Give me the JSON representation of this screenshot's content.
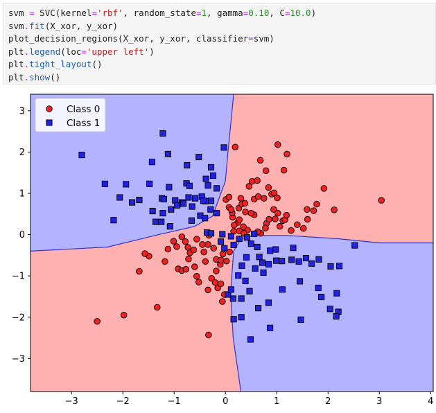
{
  "code": {
    "lines": [
      [
        {
          "t": "svm "
        },
        {
          "t": "=",
          "c": "tk-op"
        },
        {
          "t": " SVC(kernel"
        },
        {
          "t": "=",
          "c": "tk-op"
        },
        {
          "t": "'rbf'",
          "c": "tk-str"
        },
        {
          "t": ", random_state"
        },
        {
          "t": "=",
          "c": "tk-op"
        },
        {
          "t": "1",
          "c": "tk-num"
        },
        {
          "t": ", gamma"
        },
        {
          "t": "=",
          "c": "tk-op"
        },
        {
          "t": "0.10",
          "c": "tk-num"
        },
        {
          "t": ", C"
        },
        {
          "t": "=",
          "c": "tk-op"
        },
        {
          "t": "10.0",
          "c": "tk-num"
        },
        {
          "t": ")"
        }
      ],
      [
        {
          "t": "svm"
        },
        {
          "t": ".",
          "c": "tk-op"
        },
        {
          "t": "fit",
          "c": "tk-fn"
        },
        {
          "t": "(X_xor, y_xor)"
        }
      ],
      [
        {
          "t": "plot_decision_regions(X_xor, y_xor, classifier"
        },
        {
          "t": "=",
          "c": "tk-op"
        },
        {
          "t": "svm)"
        }
      ],
      [
        {
          "t": "plt"
        },
        {
          "t": ".",
          "c": "tk-op"
        },
        {
          "t": "legend",
          "c": "tk-fn"
        },
        {
          "t": "(loc"
        },
        {
          "t": "=",
          "c": "tk-op"
        },
        {
          "t": "'upper left'",
          "c": "tk-str"
        },
        {
          "t": ")"
        }
      ],
      [
        {
          "t": "plt"
        },
        {
          "t": ".",
          "c": "tk-op"
        },
        {
          "t": "tight_layout",
          "c": "tk-fn"
        },
        {
          "t": "()"
        }
      ],
      [
        {
          "t": "plt"
        },
        {
          "t": ".",
          "c": "tk-op"
        },
        {
          "t": "show",
          "c": "tk-fn"
        },
        {
          "t": "()"
        }
      ]
    ]
  },
  "colors": {
    "class0_region": "#ffb0b0",
    "class1_region": "#b3b3ff",
    "boundary": "#3333cc",
    "class0_marker": "#ee2222",
    "class1_marker": "#2222dd",
    "marker_edge": "#000000"
  },
  "chart_data": {
    "type": "scatter",
    "xlim": [
      -3.8,
      4.05
    ],
    "ylim": [
      -3.8,
      3.4
    ],
    "xticks": [
      -3,
      -2,
      -1,
      0,
      1,
      2,
      3,
      4
    ],
    "yticks": [
      -3,
      -2,
      -1,
      0,
      1,
      2,
      3
    ],
    "xtick_labels": [
      "−3",
      "−2",
      "−1",
      "0",
      "1",
      "2",
      "3",
      "4"
    ],
    "ytick_labels": [
      "−3",
      "−2",
      "−1",
      "0",
      "1",
      "2",
      "3"
    ],
    "legend_placement": "upper left",
    "legend": [
      {
        "label": "Class 0",
        "marker": "circle"
      },
      {
        "label": "Class 1",
        "marker": "square"
      }
    ],
    "regions": [
      {
        "label": "Class 1",
        "points": [
          [
            -3.8,
            3.4
          ],
          [
            0.16,
            3.4
          ],
          [
            0.05,
            2.0
          ],
          [
            0.0,
            1.3
          ],
          [
            -0.25,
            0.45
          ],
          [
            -0.6,
            0.2
          ],
          [
            -1.3,
            0.0
          ],
          [
            -2.3,
            -0.3
          ],
          [
            -3.8,
            -0.4
          ]
        ]
      },
      {
        "label": "Class 1",
        "points": [
          [
            4.05,
            -0.2
          ],
          [
            3.0,
            -0.2
          ],
          [
            2.2,
            -0.1
          ],
          [
            1.2,
            -0.02
          ],
          [
            0.55,
            -0.02
          ],
          [
            0.3,
            -0.1
          ],
          [
            0.16,
            -0.4
          ],
          [
            0.1,
            -1.4
          ],
          [
            0.15,
            -2.5
          ],
          [
            0.3,
            -3.8
          ],
          [
            4.05,
            -3.8
          ]
        ]
      }
    ],
    "boundaries": [
      [
        [
          0.16,
          3.4
        ],
        [
          0.05,
          2.0
        ],
        [
          0.0,
          1.3
        ],
        [
          -0.25,
          0.45
        ],
        [
          -0.6,
          0.2
        ],
        [
          -1.3,
          0.0
        ],
        [
          -2.3,
          -0.3
        ],
        [
          -3.8,
          -0.4
        ]
      ],
      [
        [
          4.05,
          -0.2
        ],
        [
          3.0,
          -0.2
        ],
        [
          2.2,
          -0.1
        ],
        [
          1.2,
          -0.02
        ],
        [
          0.55,
          -0.02
        ],
        [
          0.3,
          -0.1
        ],
        [
          0.16,
          -0.4
        ],
        [
          0.1,
          -1.4
        ],
        [
          0.15,
          -2.5
        ],
        [
          0.3,
          -3.8
        ]
      ]
    ],
    "series": [
      {
        "name": "Class 0",
        "marker": "circle",
        "points": [
          [
            -2.5,
            -2.1
          ],
          [
            -1.98,
            -1.95
          ],
          [
            -1.33,
            -1.76
          ],
          [
            -0.33,
            -2.43
          ],
          [
            -1.68,
            -0.89
          ],
          [
            -1.49,
            -0.52
          ],
          [
            -1.57,
            -0.46
          ],
          [
            -1.18,
            -0.65
          ],
          [
            -1.12,
            -0.35
          ],
          [
            -0.92,
            -0.83
          ],
          [
            -0.85,
            -0.87
          ],
          [
            -0.77,
            -0.84
          ],
          [
            -0.72,
            -0.59
          ],
          [
            -0.6,
            -0.78
          ],
          [
            -0.56,
            -1.01
          ],
          [
            -0.52,
            -1.15
          ],
          [
            -0.56,
            -0.11
          ],
          [
            -0.42,
            -0.42
          ],
          [
            -0.39,
            -0.65
          ],
          [
            -0.34,
            -0.24
          ],
          [
            -0.32,
            -0.02
          ],
          [
            -0.23,
            -0.33
          ],
          [
            -0.18,
            -0.6
          ],
          [
            -0.1,
            -0.72
          ],
          [
            -0.18,
            -0.88
          ],
          [
            -0.09,
            -0.62
          ],
          [
            0.02,
            -0.64
          ],
          [
            -0.05,
            -0.47
          ],
          [
            0.08,
            -0.42
          ],
          [
            -0.85,
            -0.05
          ],
          [
            -0.78,
            -0.17
          ],
          [
            -0.73,
            -0.31
          ],
          [
            -0.69,
            -0.44
          ],
          [
            -0.62,
            -0.37
          ],
          [
            -0.45,
            -0.24
          ],
          [
            -1.01,
            -0.16
          ],
          [
            -0.95,
            -0.29
          ],
          [
            -0.34,
            -1.34
          ],
          [
            -0.27,
            -1.06
          ],
          [
            -0.15,
            -1.29
          ],
          [
            -0.06,
            -1.62
          ],
          [
            -0.02,
            -1.45
          ],
          [
            -0.2,
            -1.16
          ],
          [
            -0.09,
            -1.19
          ],
          [
            0.19,
            2.12
          ],
          [
            0.26,
            0.64
          ],
          [
            0.32,
            0.74
          ],
          [
            0.38,
            0.76
          ],
          [
            0.46,
            1.17
          ],
          [
            0.52,
            1.29
          ],
          [
            0.62,
            1.31
          ],
          [
            0.68,
            1.8
          ],
          [
            0.79,
            1.55
          ],
          [
            0.8,
            0.27
          ],
          [
            0.84,
            1.14
          ],
          [
            0.9,
            0.98
          ],
          [
            0.94,
            0.61
          ],
          [
            0.97,
            0.38
          ],
          [
            1.02,
            0.52
          ],
          [
            1.02,
            2.18
          ],
          [
            1.12,
            0.34
          ],
          [
            1.14,
            1.56
          ],
          [
            1.2,
            1.95
          ],
          [
            1.28,
            0.1
          ],
          [
            1.4,
            0.24
          ],
          [
            1.52,
            0.15
          ],
          [
            1.6,
            0.37
          ],
          [
            1.72,
            0.58
          ],
          [
            1.78,
            0.74
          ],
          [
            1.92,
            1.12
          ],
          [
            2.12,
            0.6
          ],
          [
            3.04,
            0.83
          ],
          [
            1.16,
            0.36
          ],
          [
            0.85,
            0.37
          ],
          [
            0.78,
            0.16
          ],
          [
            0.69,
            0.03
          ],
          [
            0.63,
            0.07
          ],
          [
            0.56,
            0.48
          ],
          [
            0.5,
            0.52
          ],
          [
            0.43,
            0.11
          ],
          [
            0.35,
            0.19
          ],
          [
            0.24,
            0.29
          ],
          [
            0.14,
            0.42
          ],
          [
            0.07,
            0.66
          ],
          [
            0.01,
            0.85
          ],
          [
            0.07,
            0.91
          ],
          [
            0.13,
            0.53
          ],
          [
            0.17,
            0.23
          ],
          [
            0.27,
            0.09
          ],
          [
            0.36,
            0.03
          ],
          [
            0.56,
            0.86
          ],
          [
            0.75,
            0.88
          ],
          [
            1.01,
            0.89
          ],
          [
            0.95,
            1.01
          ],
          [
            0.11,
            0.61
          ],
          [
            0.3,
            0.88
          ],
          [
            0.64,
            0.92
          ],
          [
            0.39,
            0.55
          ],
          [
            0.27,
            0.36
          ],
          [
            0.16,
            0.08
          ],
          [
            1.19,
            0.47
          ],
          [
            1.59,
            0.61
          ],
          [
            1.06,
            0.2
          ]
        ]
      },
      {
        "name": "Class 1",
        "marker": "square",
        "points": [
          [
            -2.8,
            1.93
          ],
          [
            -1.22,
            2.45
          ],
          [
            -1.12,
            1.95
          ],
          [
            -1.43,
            1.76
          ],
          [
            -0.75,
            1.68
          ],
          [
            -0.52,
            1.88
          ],
          [
            -0.28,
            1.63
          ],
          [
            -0.38,
            1.35
          ],
          [
            -0.24,
            1.43
          ],
          [
            -0.03,
            2.11
          ],
          [
            -2.35,
            1.23
          ],
          [
            -1.94,
            1.22
          ],
          [
            -1.48,
            1.23
          ],
          [
            -1.1,
            1.15
          ],
          [
            -0.76,
            1.24
          ],
          [
            -0.7,
            1.18
          ],
          [
            -0.34,
            1.19
          ],
          [
            -0.17,
            1.12
          ],
          [
            -2.06,
            0.9
          ],
          [
            -1.82,
            0.78
          ],
          [
            -1.68,
            0.84
          ],
          [
            -1.24,
            0.88
          ],
          [
            -1.2,
            0.86
          ],
          [
            -0.98,
            0.83
          ],
          [
            -0.85,
            0.78
          ],
          [
            -0.72,
            0.9
          ],
          [
            -0.59,
            0.88
          ],
          [
            -0.46,
            0.92
          ],
          [
            -0.39,
            0.81
          ],
          [
            -0.28,
            0.82
          ],
          [
            -1.42,
            0.57
          ],
          [
            -1.22,
            0.52
          ],
          [
            -1.06,
            0.61
          ],
          [
            -0.94,
            0.71
          ],
          [
            -0.82,
            0.75
          ],
          [
            -0.65,
            0.68
          ],
          [
            -0.43,
            0.82
          ],
          [
            -0.29,
            0.61
          ],
          [
            -0.49,
            0.46
          ],
          [
            -0.17,
            0.52
          ],
          [
            -2.18,
            0.35
          ],
          [
            -1.36,
            0.31
          ],
          [
            -1.25,
            0.31
          ],
          [
            -1.08,
            0.2
          ],
          [
            -0.66,
            0.34
          ],
          [
            -0.4,
            0.4
          ],
          [
            -0.36,
            0.05
          ],
          [
            -0.28,
            0.03
          ],
          [
            -0.06,
            0.01
          ],
          [
            -0.09,
            -0.17
          ],
          [
            -0.02,
            -0.33
          ],
          [
            0.11,
            -0.04
          ],
          [
            0.16,
            -0.25
          ],
          [
            0.27,
            -0.1
          ],
          [
            0.42,
            -0.07
          ],
          [
            0.5,
            -0.22
          ],
          [
            0.56,
            0.02
          ],
          [
            0.62,
            -0.3
          ],
          [
            0.66,
            -0.54
          ],
          [
            0.72,
            -0.68
          ],
          [
            0.87,
            -0.39
          ],
          [
            0.99,
            -0.63
          ],
          [
            1.1,
            -0.64
          ],
          [
            1.29,
            -0.61
          ],
          [
            1.43,
            -0.65
          ],
          [
            1.57,
            -0.57
          ],
          [
            1.68,
            -0.7
          ],
          [
            1.82,
            -0.6
          ],
          [
            2.05,
            -0.77
          ],
          [
            2.17,
            -1.42
          ],
          [
            2.22,
            -0.76
          ],
          [
            2.2,
            -1.87
          ],
          [
            2.16,
            -1.98
          ],
          [
            2.52,
            -0.26
          ],
          [
            1.32,
            -0.32
          ],
          [
            0.98,
            -0.36
          ],
          [
            0.84,
            -0.72
          ],
          [
            0.74,
            -0.92
          ],
          [
            0.58,
            -0.82
          ],
          [
            0.41,
            -0.55
          ],
          [
            0.32,
            -0.75
          ],
          [
            0.25,
            -0.99
          ],
          [
            0.39,
            -1.12
          ],
          [
            0.47,
            -1.37
          ],
          [
            0.31,
            -1.55
          ],
          [
            0.15,
            -1.55
          ],
          [
            0.05,
            -1.45
          ],
          [
            0.11,
            -1.33
          ],
          [
            0.64,
            -1.78
          ],
          [
            0.84,
            -1.65
          ],
          [
            1.11,
            -1.33
          ],
          [
            1.45,
            -1.13
          ],
          [
            1.81,
            -1.29
          ],
          [
            1.87,
            -1.51
          ],
          [
            2.04,
            -1.8
          ],
          [
            1.47,
            -2.06
          ],
          [
            0.87,
            -2.26
          ],
          [
            0.49,
            -2.54
          ],
          [
            0.31,
            -2.0
          ],
          [
            0.16,
            -2.05
          ]
        ]
      }
    ]
  }
}
